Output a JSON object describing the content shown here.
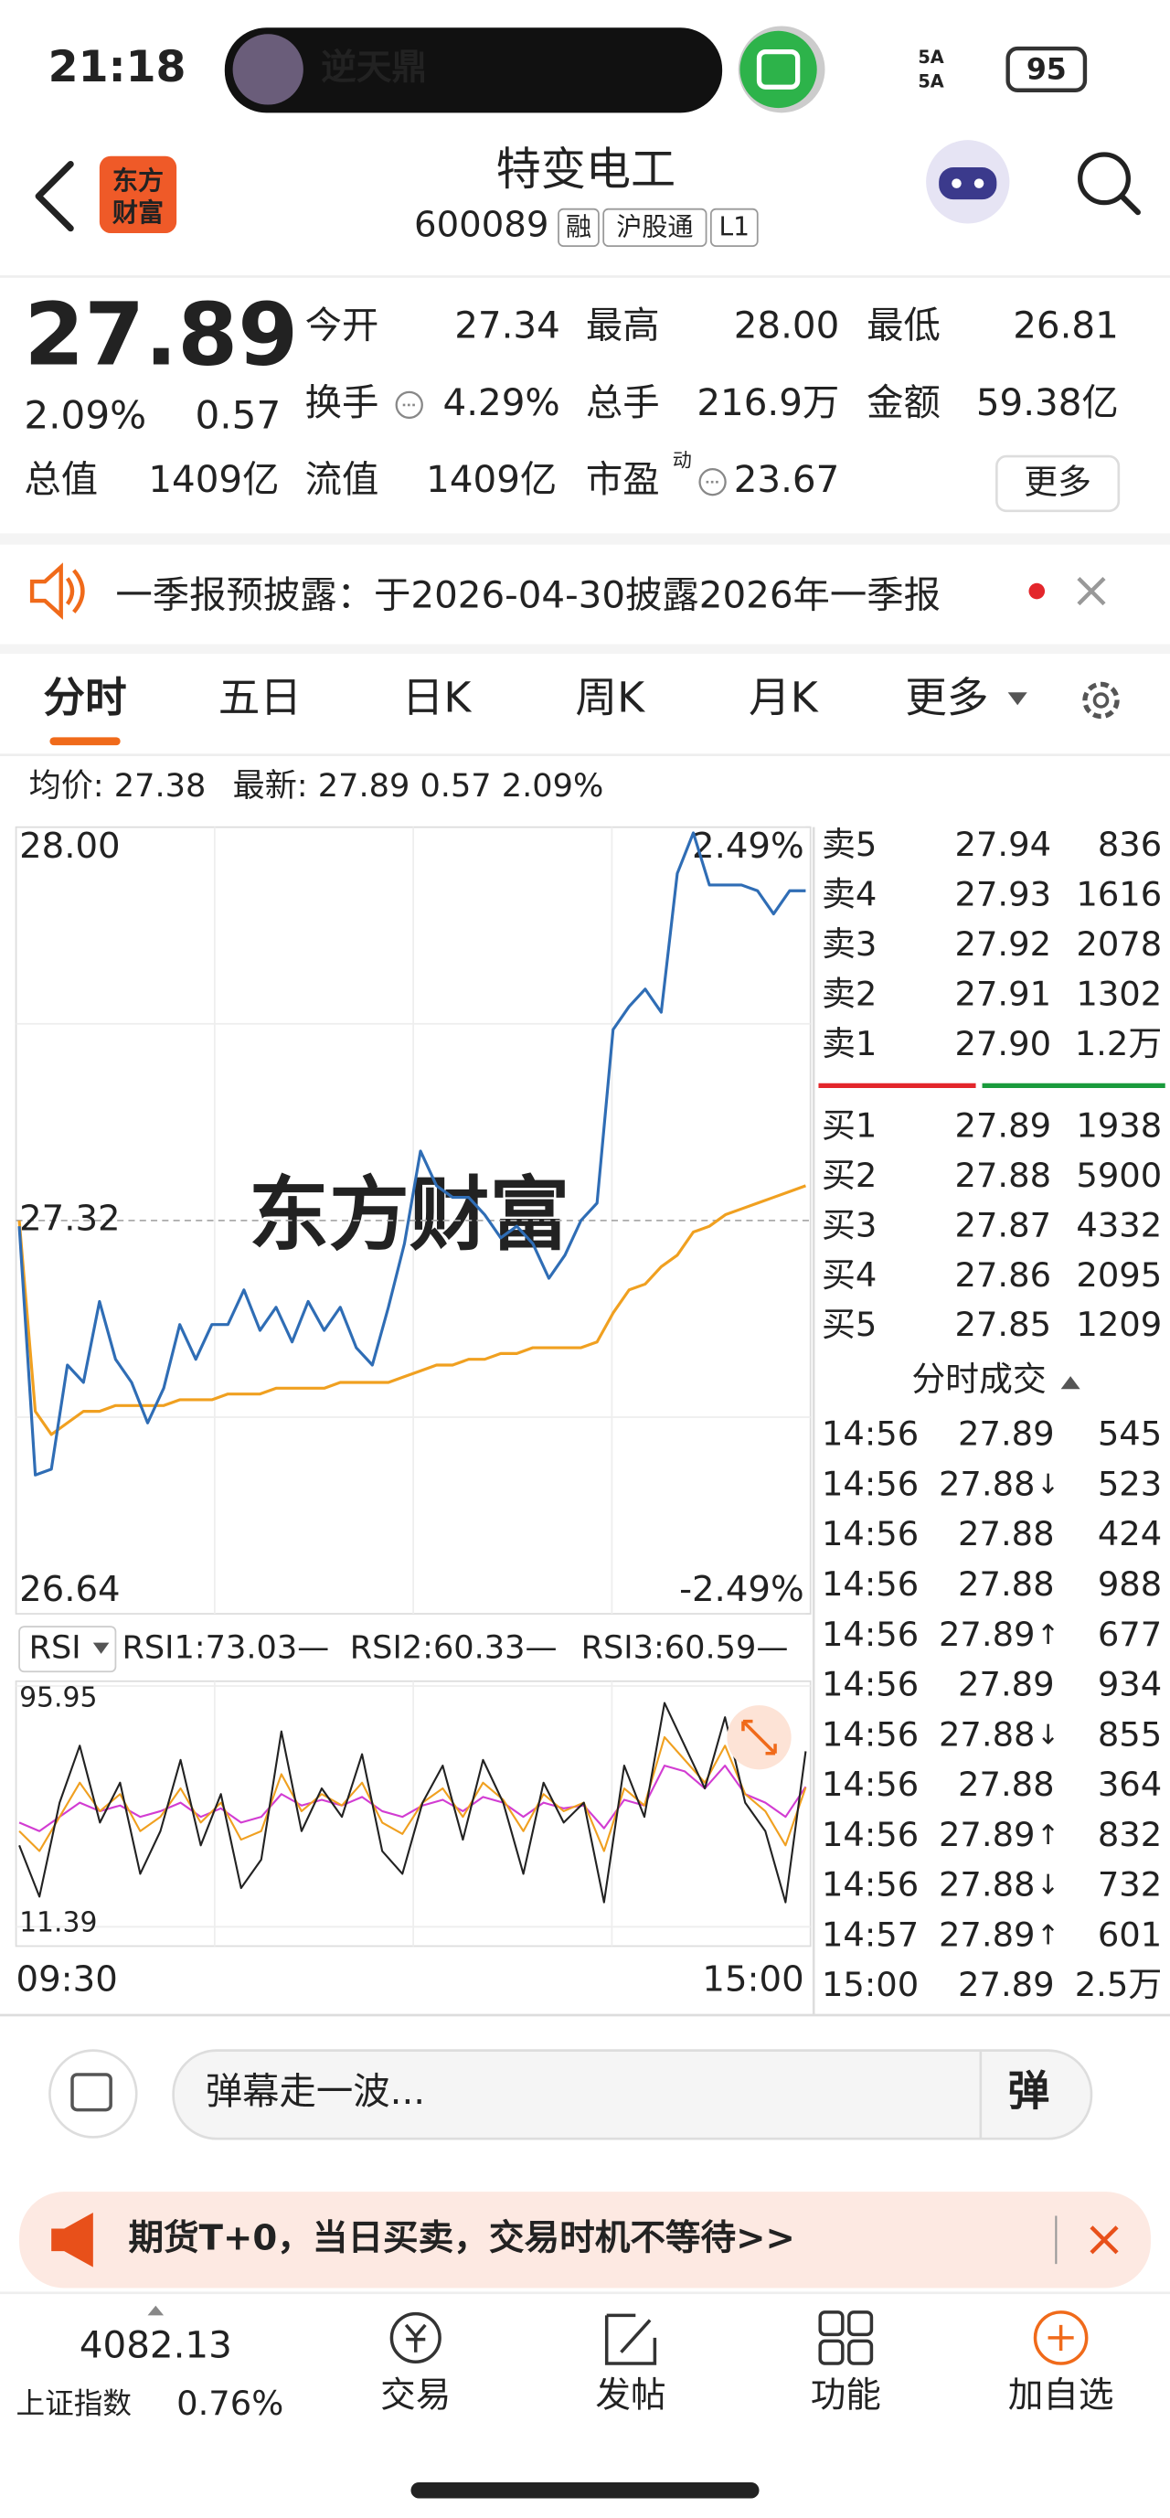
{
  "status_bar": {
    "time": "21:18",
    "pill_title": "逆天鼎",
    "network": [
      "5A",
      "5A"
    ],
    "battery": "95"
  },
  "header": {
    "logo": [
      "东方",
      "财富"
    ],
    "title": "特变电工",
    "code": "600089",
    "tags": [
      "融",
      "沪股通",
      "L1"
    ]
  },
  "quote": {
    "price": "27.89",
    "change_pct": "2.09%",
    "change": "0.57",
    "stats": [
      {
        "label": "今开",
        "value": "27.34",
        "color": "#e3262b"
      },
      {
        "label": "最高",
        "value": "28.00",
        "color": "#e3262b"
      },
      {
        "label": "最低",
        "value": "26.81",
        "color": "#1a9b3c"
      },
      {
        "label": "换手",
        "value": "4.29%",
        "color": "#222222"
      },
      {
        "label": "总手",
        "value": "216.9万",
        "color": "#222222"
      },
      {
        "label": "金额",
        "value": "59.38亿",
        "color": "#222222"
      },
      {
        "label": "总值",
        "value": "1409亿",
        "color": "#222222"
      },
      {
        "label": "流值",
        "value": "1409亿",
        "color": "#222222"
      },
      {
        "label": "市盈",
        "sup": "动",
        "value": "23.67",
        "color": "#222222"
      }
    ],
    "more_button": "更多"
  },
  "notice": {
    "text": "一季报预披露：于2026-04-30披露2026年一季报"
  },
  "tabs": {
    "items": [
      "分时",
      "五日",
      "日K",
      "周K",
      "月K",
      "更多"
    ],
    "active": 0
  },
  "summary": {
    "average": "均价: 27.38",
    "latest": "最新: 27.89 0.57 2.09%"
  },
  "chart_data": [
    {
      "type": "line",
      "watermark": "东方财富",
      "ylim": [
        26.64,
        28.0
      ],
      "yticks": [
        {
          "value": 28,
          "label": "28.00"
        },
        {
          "value": 27.32,
          "label": "27.32"
        },
        {
          "value": 26.64,
          "label": "26.64"
        }
      ],
      "y2lim": [
        -2.49,
        2.49
      ],
      "y2ticks": [
        {
          "value": 2.49,
          "label": "2.49%"
        },
        {
          "value": -2.49,
          "label": "-2.49%"
        }
      ],
      "grid": true,
      "series": [
        {
          "color": "#2f6db5",
          "values": [
            27.31,
            26.88,
            26.89,
            27.07,
            27.04,
            27.18,
            27.08,
            27.04,
            26.97,
            27.03,
            27.14,
            27.08,
            27.14,
            27.14,
            27.2,
            27.13,
            27.17,
            27.11,
            27.18,
            27.13,
            27.17,
            27.1,
            27.07,
            27.17,
            27.28,
            27.44,
            27.38,
            27.36,
            27.36,
            27.33,
            27.29,
            27.31,
            27.28,
            27.22,
            27.26,
            27.32,
            27.35,
            27.65,
            27.69,
            27.72,
            27.68,
            27.92,
            27.99,
            27.9,
            27.9,
            27.9,
            27.89,
            27.85,
            27.89,
            27.89
          ]
        },
        {
          "color": "#f0a020",
          "values": [
            27.32,
            26.99,
            26.95,
            26.97,
            26.99,
            26.99,
            27.0,
            27.0,
            27.0,
            27.0,
            27.01,
            27.01,
            27.01,
            27.02,
            27.02,
            27.02,
            27.03,
            27.03,
            27.03,
            27.03,
            27.04,
            27.04,
            27.04,
            27.04,
            27.05,
            27.06,
            27.07,
            27.07,
            27.08,
            27.08,
            27.09,
            27.09,
            27.1,
            27.1,
            27.1,
            27.1,
            27.11,
            27.16,
            27.2,
            27.21,
            27.24,
            27.26,
            27.3,
            27.31,
            27.33,
            27.34,
            27.35,
            27.36,
            27.37,
            27.38
          ]
        }
      ]
    },
    {
      "type": "line",
      "legend_button": "RSI",
      "ylim": [
        11.39,
        95.95
      ],
      "yticks": [
        {
          "value": 95.95,
          "label": "95.95"
        },
        {
          "value": 11.39,
          "label": "11.39"
        }
      ],
      "time_labels": [
        "09:30",
        "15:00"
      ],
      "series": [
        {
          "name": "RSI1:73.03—",
          "color": "#222222",
          "values": [
            40,
            22,
            55,
            75,
            48,
            62,
            30,
            45,
            70,
            40,
            58,
            25,
            35,
            80,
            45,
            60,
            50,
            72,
            38,
            30,
            55,
            68,
            42,
            70,
            55,
            30,
            62,
            48,
            55,
            20,
            68,
            50,
            90,
            75,
            60,
            85,
            55,
            45,
            20,
            73.03
          ]
        },
        {
          "name": "RSI2:60.33—",
          "color": "#f0a020",
          "values": [
            45,
            38,
            50,
            62,
            52,
            58,
            45,
            50,
            60,
            48,
            55,
            42,
            45,
            65,
            52,
            58,
            54,
            62,
            48,
            44,
            55,
            60,
            50,
            62,
            56,
            45,
            58,
            52,
            55,
            38,
            60,
            54,
            78,
            70,
            62,
            75,
            58,
            52,
            40,
            60.33
          ]
        },
        {
          "name": "RSI3:60.59—",
          "color": "#d23cd2",
          "values": [
            48,
            45,
            50,
            55,
            52,
            54,
            50,
            52,
            55,
            50,
            53,
            48,
            50,
            58,
            54,
            56,
            54,
            57,
            52,
            50,
            54,
            56,
            52,
            57,
            55,
            50,
            55,
            53,
            54,
            46,
            56,
            54,
            68,
            66,
            60,
            68,
            58,
            55,
            50,
            60.59
          ]
        }
      ]
    }
  ],
  "order_book": {
    "asks": [
      {
        "label": "卖5",
        "price": "27.94",
        "volume": "836"
      },
      {
        "label": "卖4",
        "price": "27.93",
        "volume": "1616"
      },
      {
        "label": "卖3",
        "price": "27.92",
        "volume": "2078"
      },
      {
        "label": "卖2",
        "price": "27.91",
        "volume": "1302"
      },
      {
        "label": "卖1",
        "price": "27.90",
        "volume": "1.2万"
      }
    ],
    "bids": [
      {
        "label": "买1",
        "price": "27.89",
        "volume": "1938"
      },
      {
        "label": "买2",
        "price": "27.88",
        "volume": "5900"
      },
      {
        "label": "买3",
        "price": "27.87",
        "volume": "4332"
      },
      {
        "label": "买4",
        "price": "27.86",
        "volume": "2095"
      },
      {
        "label": "买5",
        "price": "27.85",
        "volume": "1209"
      }
    ]
  },
  "trades": {
    "title": "分时成交",
    "rows": [
      {
        "time": "14:56",
        "price": "27.89",
        "volume": "545",
        "color": "#e3262b"
      },
      {
        "time": "14:56",
        "price": "27.88",
        "arrow": "↓",
        "volume": "523",
        "color": "#1a9b3c"
      },
      {
        "time": "14:56",
        "price": "27.88",
        "volume": "424",
        "color": "#1a9b3c"
      },
      {
        "time": "14:56",
        "price": "27.88",
        "volume": "988",
        "color": "#1a9b3c"
      },
      {
        "time": "14:56",
        "price": "27.89",
        "arrow": "↑",
        "volume": "677",
        "color": "#e3262b"
      },
      {
        "time": "14:56",
        "price": "27.89",
        "volume": "934",
        "color": "#e3262b"
      },
      {
        "time": "14:56",
        "price": "27.88",
        "arrow": "↓",
        "volume": "855",
        "color": "#1a9b3c"
      },
      {
        "time": "14:56",
        "price": "27.88",
        "volume": "364",
        "color": "#1a9b3c"
      },
      {
        "time": "14:56",
        "price": "27.89",
        "arrow": "↑",
        "volume": "832",
        "color": "#e3262b"
      },
      {
        "time": "14:56",
        "price": "27.88",
        "arrow": "↓",
        "volume": "732",
        "color": "#1a9b3c"
      },
      {
        "time": "14:57",
        "price": "27.89",
        "arrow": "↑",
        "volume": "601",
        "color": "#e3262b"
      },
      {
        "time": "15:00",
        "price": "27.89",
        "volume": "2.5万",
        "color": "#1a9b3c"
      }
    ]
  },
  "danmaku": {
    "placeholder": "弹幕走一波...",
    "button": "弹"
  },
  "ad": {
    "text": "期货T+0，当日买卖，交易时机不等待>>"
  },
  "bottom_nav": {
    "index_value": "4082.13",
    "index_name": "上证指数",
    "index_change": "0.76%",
    "items": [
      "交易",
      "发帖",
      "功能",
      "加自选"
    ]
  }
}
